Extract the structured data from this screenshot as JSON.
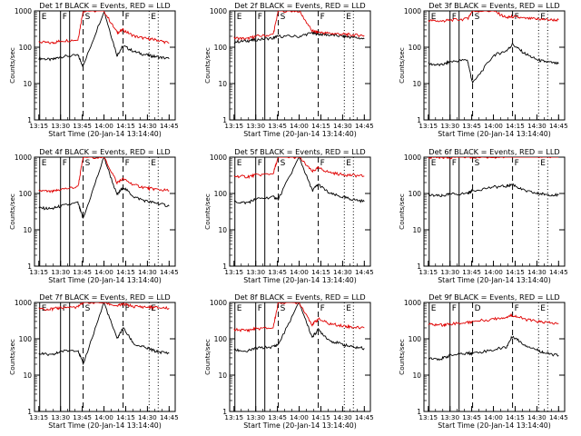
{
  "colors": {
    "events": "#000000",
    "lld": "#e00000",
    "axes": "#000000"
  },
  "chart_data": [
    {
      "type": "line",
      "title": "Det 1f BLACK = Events, RED = LLD",
      "xlabel": "Start Time (20-Jan-14 13:14:40)",
      "ylabel": "Counts/sec",
      "ylim": [
        1,
        1000
      ],
      "yscale": "log",
      "xticks": [
        "13:15",
        "13:30",
        "13:45",
        "14:00",
        "14:15",
        "14:30",
        "14:45"
      ],
      "yticks": [
        "1",
        "10",
        "100",
        "1000"
      ],
      "markers": [
        {
          "label": "E",
          "t": 13.26
        },
        {
          "label": "F",
          "t": 13.5
        },
        {
          "label": "S",
          "t": 13.76
        },
        {
          "label": "F",
          "t": 14.22
        },
        {
          "label": "E",
          "t": 14.52
        }
      ],
      "series": [
        {
          "name": "Events",
          "color": "#000000",
          "x": [
            13.25,
            13.4,
            13.5,
            13.7,
            13.76,
            14.0,
            14.15,
            14.22,
            14.35,
            14.5,
            14.6,
            14.75
          ],
          "y": [
            50,
            45,
            55,
            60,
            30,
            1000,
            60,
            110,
            75,
            60,
            55,
            48
          ]
        },
        {
          "name": "LLD",
          "color": "#e00000",
          "x": [
            13.25,
            13.4,
            13.5,
            13.7,
            13.76,
            14.0,
            14.15,
            14.22,
            14.35,
            14.5,
            14.6,
            14.75
          ],
          "y": [
            140,
            130,
            150,
            160,
            1000,
            1000,
            250,
            300,
            200,
            170,
            160,
            130
          ]
        }
      ]
    },
    {
      "type": "line",
      "title": "Det 2f BLACK = Events, RED = LLD",
      "xlabel": "Start Time (20-Jan-14 13:14:40)",
      "ylabel": "Counts/sec",
      "ylim": [
        1,
        1000
      ],
      "yscale": "log",
      "xticks": [
        "13:15",
        "13:30",
        "13:45",
        "14:00",
        "14:15",
        "14:30",
        "14:45"
      ],
      "yticks": [
        "1",
        "10",
        "100",
        "1000"
      ],
      "markers": [
        {
          "label": "E",
          "t": 13.26
        },
        {
          "label": "F",
          "t": 13.5
        },
        {
          "label": "S",
          "t": 13.76
        },
        {
          "label": "F",
          "t": 14.22
        },
        {
          "label": "E",
          "t": 14.52
        }
      ],
      "series": [
        {
          "name": "Events",
          "color": "#000000",
          "x": [
            13.25,
            13.4,
            13.5,
            13.7,
            13.76,
            14.0,
            14.15,
            14.22,
            14.35,
            14.5,
            14.6,
            14.75
          ],
          "y": [
            140,
            150,
            160,
            180,
            200,
            200,
            250,
            230,
            220,
            200,
            190,
            170
          ]
        },
        {
          "name": "LLD",
          "color": "#e00000",
          "x": [
            13.25,
            13.4,
            13.5,
            13.7,
            13.76,
            14.0,
            14.15,
            14.22,
            14.35,
            14.5,
            14.6,
            14.75
          ],
          "y": [
            180,
            170,
            200,
            220,
            1000,
            1000,
            280,
            260,
            240,
            230,
            220,
            210
          ]
        }
      ]
    },
    {
      "type": "line",
      "title": "Det 3f BLACK = Events, RED = LLD",
      "xlabel": "Start Time (20-Jan-14 13:14:40)",
      "ylabel": "Counts/sec",
      "ylim": [
        1,
        1000
      ],
      "yscale": "log",
      "xticks": [
        "13:15",
        "13:30",
        "13:45",
        "14:00",
        "14:15",
        "14:30",
        "14:45"
      ],
      "yticks": [
        "1",
        "10",
        "100",
        "1000"
      ],
      "markers": [
        {
          "label": "E",
          "t": 13.26
        },
        {
          "label": "F",
          "t": 13.5
        },
        {
          "label": "S",
          "t": 13.76
        },
        {
          "label": "F",
          "t": 14.22
        },
        {
          "label": "E",
          "t": 14.52
        }
      ],
      "series": [
        {
          "name": "Events",
          "color": "#000000",
          "x": [
            13.25,
            13.4,
            13.5,
            13.7,
            13.76,
            14.0,
            14.15,
            14.22,
            14.35,
            14.5,
            14.6,
            14.75
          ],
          "y": [
            35,
            32,
            40,
            45,
            10,
            60,
            80,
            120,
            70,
            45,
            40,
            35
          ]
        },
        {
          "name": "LLD",
          "color": "#e00000",
          "x": [
            13.25,
            13.4,
            13.5,
            13.7,
            13.76,
            14.0,
            14.15,
            14.22,
            14.35,
            14.5,
            14.6,
            14.75
          ],
          "y": [
            550,
            520,
            560,
            600,
            1000,
            1000,
            650,
            700,
            620,
            600,
            580,
            560
          ]
        }
      ]
    },
    {
      "type": "line",
      "title": "Det 4f BLACK = Events, RED = LLD",
      "xlabel": "Start Time (20-Jan-14 13:14:40)",
      "ylabel": "Counts/sec",
      "ylim": [
        1,
        1000
      ],
      "yscale": "log",
      "xticks": [
        "13:15",
        "13:30",
        "13:45",
        "14:00",
        "14:15",
        "14:30",
        "14:45"
      ],
      "yticks": [
        "1",
        "10",
        "100",
        "1000"
      ],
      "markers": [
        {
          "label": "E",
          "t": 13.26
        },
        {
          "label": "F",
          "t": 13.5
        },
        {
          "label": "S",
          "t": 13.76
        },
        {
          "label": "F",
          "t": 14.22
        },
        {
          "label": "E",
          "t": 14.52
        }
      ],
      "series": [
        {
          "name": "Events",
          "color": "#000000",
          "x": [
            13.25,
            13.4,
            13.5,
            13.7,
            13.76,
            14.0,
            14.15,
            14.22,
            14.35,
            14.5,
            14.6,
            14.75
          ],
          "y": [
            40,
            38,
            45,
            55,
            20,
            1000,
            90,
            150,
            80,
            60,
            55,
            45
          ]
        },
        {
          "name": "LLD",
          "color": "#e00000",
          "x": [
            13.25,
            13.4,
            13.5,
            13.7,
            13.76,
            14.0,
            14.15,
            14.22,
            14.35,
            14.5,
            14.6,
            14.75
          ],
          "y": [
            120,
            110,
            130,
            150,
            1000,
            1000,
            200,
            250,
            170,
            140,
            130,
            120
          ]
        }
      ]
    },
    {
      "type": "line",
      "title": "Det 5f BLACK = Events, RED = LLD",
      "xlabel": "Start Time (20-Jan-14 13:14:40)",
      "ylabel": "Counts/sec",
      "ylim": [
        1,
        1000
      ],
      "yscale": "log",
      "xticks": [
        "13:15",
        "13:30",
        "13:45",
        "14:00",
        "14:15",
        "14:30",
        "14:45"
      ],
      "yticks": [
        "1",
        "10",
        "100",
        "1000"
      ],
      "markers": [
        {
          "label": "E",
          "t": 13.26
        },
        {
          "label": "F",
          "t": 13.5
        },
        {
          "label": "S",
          "t": 13.76
        },
        {
          "label": "F",
          "t": 14.22
        },
        {
          "label": "E",
          "t": 14.52
        }
      ],
      "series": [
        {
          "name": "Events",
          "color": "#000000",
          "x": [
            13.25,
            13.4,
            13.5,
            13.7,
            13.76,
            14.0,
            14.15,
            14.22,
            14.35,
            14.5,
            14.6,
            14.75
          ],
          "y": [
            60,
            55,
            70,
            80,
            70,
            1000,
            120,
            180,
            100,
            80,
            70,
            60
          ]
        },
        {
          "name": "LLD",
          "color": "#e00000",
          "x": [
            13.25,
            13.4,
            13.5,
            13.7,
            13.76,
            14.0,
            14.15,
            14.22,
            14.35,
            14.5,
            14.6,
            14.75
          ],
          "y": [
            300,
            290,
            320,
            350,
            1000,
            1000,
            400,
            500,
            380,
            330,
            320,
            300
          ]
        }
      ]
    },
    {
      "type": "line",
      "title": "Det 6f BLACK = Events, RED = LLD",
      "xlabel": "Start Time (20-Jan-14 13:14:40)",
      "ylabel": "Counts/sec",
      "ylim": [
        1,
        1000
      ],
      "yscale": "log",
      "xticks": [
        "13:15",
        "13:30",
        "13:45",
        "14:00",
        "14:15",
        "14:30",
        "14:45"
      ],
      "yticks": [
        "1",
        "10",
        "100",
        "1000"
      ],
      "markers": [
        {
          "label": "E",
          "t": 13.26
        },
        {
          "label": "F",
          "t": 13.5
        },
        {
          "label": "S",
          "t": 13.76
        },
        {
          "label": "F",
          "t": 14.22
        },
        {
          "label": "E",
          "t": 14.52
        }
      ],
      "series": [
        {
          "name": "Events",
          "color": "#000000",
          "x": [
            13.25,
            13.4,
            13.5,
            13.7,
            13.76,
            14.0,
            14.15,
            14.22,
            14.35,
            14.5,
            14.6,
            14.75
          ],
          "y": [
            90,
            85,
            95,
            100,
            120,
            150,
            160,
            180,
            120,
            100,
            95,
            90
          ]
        },
        {
          "name": "LLD",
          "color": "#e00000",
          "x": [
            13.25,
            13.4,
            13.5,
            13.7,
            13.76,
            14.0,
            14.15,
            14.22,
            14.35,
            14.5,
            14.6,
            14.75
          ],
          "y": [
            1000,
            1000,
            1000,
            1050,
            1000,
            1000,
            1000,
            1200,
            1100,
            1050,
            1050,
            1050
          ]
        }
      ]
    },
    {
      "type": "line",
      "title": "Det 7f BLACK = Events, RED = LLD",
      "xlabel": "Start Time (20-Jan-14 13:14:40)",
      "ylabel": "Counts/sec",
      "ylim": [
        1,
        1000
      ],
      "yscale": "log",
      "xticks": [
        "13:15",
        "13:30",
        "13:45",
        "14:00",
        "14:15",
        "14:30",
        "14:45"
      ],
      "yticks": [
        "1",
        "10",
        "100",
        "1000"
      ],
      "markers": [
        {
          "label": "E",
          "t": 13.26
        },
        {
          "label": "F",
          "t": 13.5
        },
        {
          "label": "S",
          "t": 13.76
        },
        {
          "label": "F",
          "t": 14.22
        },
        {
          "label": "E",
          "t": 14.52
        }
      ],
      "series": [
        {
          "name": "Events",
          "color": "#000000",
          "x": [
            13.25,
            13.4,
            13.5,
            13.7,
            13.76,
            14.0,
            14.15,
            14.22,
            14.35,
            14.5,
            14.6,
            14.75
          ],
          "y": [
            40,
            35,
            45,
            50,
            20,
            1000,
            100,
            200,
            70,
            55,
            45,
            40
          ]
        },
        {
          "name": "LLD",
          "color": "#e00000",
          "x": [
            13.25,
            13.4,
            13.5,
            13.7,
            13.76,
            14.0,
            14.15,
            14.22,
            14.35,
            14.5,
            14.6,
            14.75
          ],
          "y": [
            700,
            650,
            720,
            750,
            1000,
            1000,
            800,
            900,
            780,
            750,
            720,
            700
          ]
        }
      ]
    },
    {
      "type": "line",
      "title": "Det 8f BLACK = Events, RED = LLD",
      "xlabel": "Start Time (20-Jan-14 13:14:40)",
      "ylabel": "Counts/sec",
      "ylim": [
        1,
        1000
      ],
      "yscale": "log",
      "xticks": [
        "13:15",
        "13:30",
        "13:45",
        "14:00",
        "14:15",
        "14:30",
        "14:45"
      ],
      "yticks": [
        "1",
        "10",
        "100",
        "1000"
      ],
      "markers": [
        {
          "label": "E",
          "t": 13.26
        },
        {
          "label": "F",
          "t": 13.5
        },
        {
          "label": "S",
          "t": 13.76
        },
        {
          "label": "F",
          "t": 14.22
        },
        {
          "label": "E",
          "t": 14.52
        }
      ],
      "series": [
        {
          "name": "Events",
          "color": "#000000",
          "x": [
            13.25,
            13.4,
            13.5,
            13.7,
            13.76,
            14.0,
            14.15,
            14.22,
            14.35,
            14.5,
            14.6,
            14.75
          ],
          "y": [
            50,
            45,
            55,
            60,
            70,
            1000,
            110,
            180,
            90,
            70,
            60,
            55
          ]
        },
        {
          "name": "LLD",
          "color": "#e00000",
          "x": [
            13.25,
            13.4,
            13.5,
            13.7,
            13.76,
            14.0,
            14.15,
            14.22,
            14.35,
            14.5,
            14.6,
            14.75
          ],
          "y": [
            180,
            170,
            190,
            200,
            1000,
            1000,
            250,
            350,
            260,
            230,
            210,
            200
          ]
        }
      ]
    },
    {
      "type": "line",
      "title": "Det 9f BLACK = Events, RED = LLD",
      "xlabel": "Start Time (20-Jan-14 13:14:40)",
      "ylabel": "Counts/sec",
      "ylim": [
        1,
        1000
      ],
      "yscale": "log",
      "xticks": [
        "13:15",
        "13:30",
        "13:45",
        "14:00",
        "14:15",
        "14:30",
        "14:45"
      ],
      "yticks": [
        "1",
        "10",
        "100",
        "1000"
      ],
      "markers": [
        {
          "label": "E",
          "t": 13.26
        },
        {
          "label": "F",
          "t": 13.5
        },
        {
          "label": "D",
          "t": 13.76
        },
        {
          "label": "F",
          "t": 14.22
        },
        {
          "label": "E",
          "t": 14.52
        }
      ],
      "series": [
        {
          "name": "Events",
          "color": "#000000",
          "x": [
            13.25,
            13.4,
            13.5,
            13.7,
            13.76,
            14.0,
            14.15,
            14.22,
            14.35,
            14.5,
            14.6,
            14.75
          ],
          "y": [
            30,
            28,
            35,
            40,
            40,
            50,
            60,
            120,
            70,
            50,
            40,
            35
          ]
        },
        {
          "name": "LLD",
          "color": "#e00000",
          "x": [
            13.25,
            13.4,
            13.5,
            13.7,
            13.76,
            14.0,
            14.15,
            14.22,
            14.35,
            14.5,
            14.6,
            14.75
          ],
          "y": [
            250,
            240,
            260,
            280,
            300,
            350,
            400,
            450,
            350,
            300,
            280,
            260
          ]
        }
      ]
    }
  ]
}
